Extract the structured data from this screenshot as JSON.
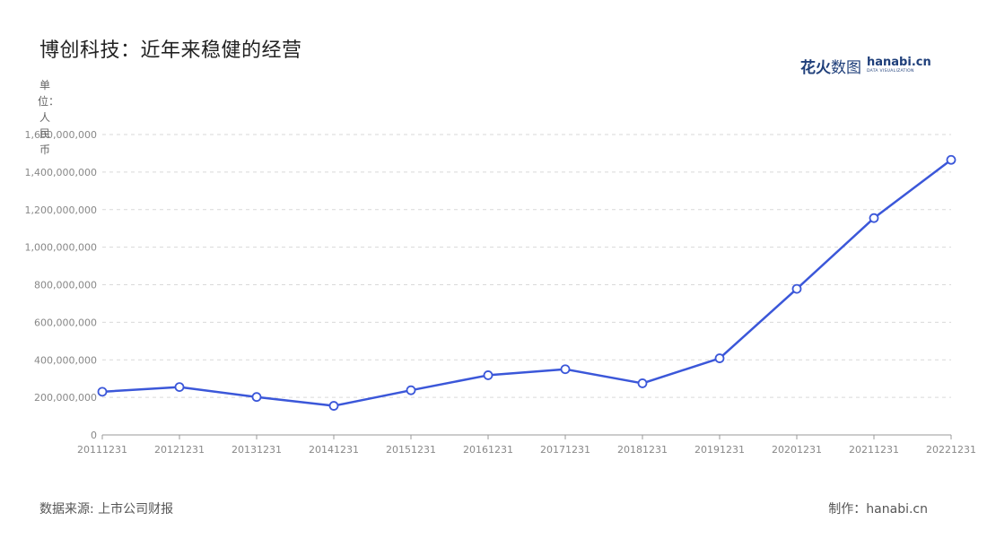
{
  "header": {
    "title": "博创科技：近年来稳健的经营"
  },
  "logo": {
    "zh_bold": "花火",
    "zh_light": "数图",
    "en": "hanabi.cn",
    "en_sub": "DATA VISUALIZATION"
  },
  "footer": {
    "source": "数据来源: 上市公司财报",
    "credit": "制作：hanabi.cn"
  },
  "chart_data": {
    "type": "line",
    "ylabel": "单位：人民币",
    "categories": [
      "20111231",
      "20121231",
      "20131231",
      "20141231",
      "20151231",
      "20161231",
      "20171231",
      "20181231",
      "20191231",
      "20201231",
      "20211231",
      "20221231"
    ],
    "series": [
      {
        "values": [
          230000000,
          255000000,
          202000000,
          155000000,
          238000000,
          318000000,
          350000000,
          275000000,
          408000000,
          778000000,
          1155000000,
          1465000000
        ]
      }
    ],
    "ylim": [
      0,
      1600000000
    ],
    "yticks": [
      0,
      200000000,
      400000000,
      600000000,
      800000000,
      1000000000,
      1200000000,
      1400000000,
      1600000000
    ],
    "ytick_labels": [
      "0",
      "200,000,000",
      "400,000,000",
      "600,000,000",
      "800,000,000",
      "1,000,000,000",
      "1,200,000,000",
      "1,400,000,000",
      "1,600,000,000"
    ],
    "grid": true,
    "legend": "none",
    "colors": {
      "line": "#3b57d9",
      "marker_fill": "#ffffff",
      "grid": "#d9d9d9",
      "axis": "#999999",
      "tick_text": "#888888"
    }
  }
}
